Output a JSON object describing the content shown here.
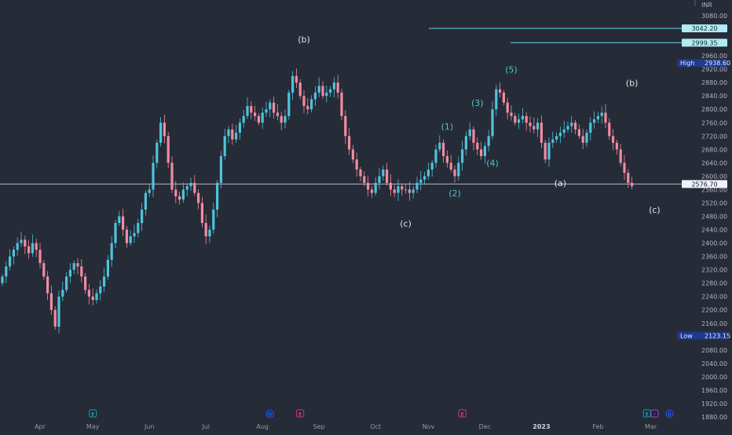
{
  "chart_data": {
    "type": "candlestick",
    "currency": "INR",
    "ylim": [
      1870,
      3100
    ],
    "y_ticks": [
      1880,
      1920,
      1960,
      2000,
      2040,
      2080,
      2120,
      2160,
      2200,
      2240,
      2280,
      2320,
      2360,
      2400,
      2440,
      2480,
      2520,
      2560,
      2600,
      2640,
      2680,
      2720,
      2760,
      2800,
      2840,
      2880,
      2920,
      2960,
      3000,
      3040,
      3080
    ],
    "x_months": [
      {
        "label": "Apr",
        "bar": 10,
        "bold": false
      },
      {
        "label": "May",
        "bar": 24,
        "bold": false
      },
      {
        "label": "Jun",
        "bar": 39,
        "bold": false
      },
      {
        "label": "Jul",
        "bar": 54,
        "bold": false
      },
      {
        "label": "Aug",
        "bar": 69,
        "bold": false
      },
      {
        "label": "Sep",
        "bar": 84,
        "bold": false
      },
      {
        "label": "Oct",
        "bar": 99,
        "bold": false
      },
      {
        "label": "Nov",
        "bar": 113,
        "bold": false
      },
      {
        "label": "Dec",
        "bar": 128,
        "bold": false
      },
      {
        "label": "2023",
        "bar": 143,
        "bold": true
      },
      {
        "label": "Feb",
        "bar": 158,
        "bold": false
      },
      {
        "label": "Mar",
        "bar": 172,
        "bold": false
      }
    ],
    "closes": [
      2300,
      2330,
      2360,
      2380,
      2400,
      2410,
      2390,
      2370,
      2400,
      2380,
      2340,
      2300,
      2250,
      2200,
      2150,
      2240,
      2260,
      2300,
      2320,
      2340,
      2330,
      2300,
      2260,
      2240,
      2230,
      2250,
      2270,
      2300,
      2350,
      2400,
      2460,
      2480,
      2440,
      2400,
      2420,
      2430,
      2460,
      2500,
      2550,
      2560,
      2640,
      2700,
      2760,
      2720,
      2640,
      2560,
      2540,
      2530,
      2560,
      2570,
      2580,
      2550,
      2520,
      2460,
      2420,
      2440,
      2500,
      2580,
      2660,
      2720,
      2740,
      2710,
      2730,
      2760,
      2780,
      2810,
      2790,
      2780,
      2760,
      2790,
      2800,
      2820,
      2790,
      2780,
      2760,
      2780,
      2850,
      2900,
      2880,
      2840,
      2810,
      2800,
      2830,
      2850,
      2870,
      2840,
      2850,
      2860,
      2880,
      2850,
      2780,
      2720,
      2680,
      2650,
      2620,
      2600,
      2580,
      2560,
      2550,
      2580,
      2600,
      2620,
      2580,
      2560,
      2550,
      2570,
      2560,
      2560,
      2550,
      2560,
      2580,
      2590,
      2600,
      2620,
      2640,
      2680,
      2700,
      2660,
      2640,
      2620,
      2600,
      2640,
      2680,
      2720,
      2740,
      2700,
      2680,
      2660,
      2690,
      2720,
      2800,
      2860,
      2850,
      2820,
      2790,
      2780,
      2760,
      2770,
      2780,
      2760,
      2750,
      2740,
      2760,
      2700,
      2650,
      2700,
      2710,
      2720,
      2730,
      2740,
      2750,
      2760,
      2740,
      2720,
      2700,
      2730,
      2760,
      2770,
      2780,
      2790,
      2760,
      2720,
      2700,
      2680,
      2640,
      2610,
      2580,
      2570
    ],
    "high_label": "High",
    "high_value": "2938.60",
    "low_label": "Low",
    "low_value": "2123.15",
    "current_price": "2576.70",
    "target_levels": [
      "3042.20",
      "2999.35"
    ],
    "wave_labels": [
      {
        "text": "(b)",
        "bar": 80,
        "price": 3000,
        "color": "white"
      },
      {
        "text": "(c)",
        "bar": 107,
        "price": 2450,
        "color": "white"
      },
      {
        "text": "(1)",
        "bar": 118,
        "price": 2740,
        "color": "teal"
      },
      {
        "text": "(2)",
        "bar": 120,
        "price": 2540,
        "color": "teal"
      },
      {
        "text": "(3)",
        "bar": 126,
        "price": 2810,
        "color": "teal"
      },
      {
        "text": "(4)",
        "bar": 130,
        "price": 2630,
        "color": "teal"
      },
      {
        "text": "(5)",
        "bar": 135,
        "price": 2910,
        "color": "teal"
      },
      {
        "text": "(a)",
        "bar": 148,
        "price": 2570,
        "color": "white"
      },
      {
        "text": "(b)",
        "bar": 167,
        "price": 2870,
        "color": "white"
      },
      {
        "text": "(c)",
        "bar": 173,
        "price": 2490,
        "color": "white"
      }
    ],
    "events": [
      {
        "type": "E",
        "bar": 24,
        "color": "#26a69a"
      },
      {
        "type": "D",
        "bar": 71,
        "color": "#2962ff"
      },
      {
        "type": "E",
        "bar": 79,
        "color": "#e04060"
      },
      {
        "type": "E",
        "bar": 122,
        "color": "#e04060"
      },
      {
        "type": "E",
        "bar": 171,
        "color": "#26a69a"
      },
      {
        "type": "⚡",
        "bar": 173,
        "color": "#ab47bc"
      },
      {
        "type": "D",
        "bar": 177,
        "color": "#2962ff"
      }
    ]
  },
  "colors": {
    "up": "#4fc3d9",
    "down": "#f28ba0",
    "background": "#262b38",
    "axis_text": "#b2b5be",
    "price_line": "#c8ccd4",
    "target_line": "#5fd3e0",
    "target_tag_bg": "#b2ebf2",
    "high_low_tag_bg": "#1e3a8a"
  }
}
